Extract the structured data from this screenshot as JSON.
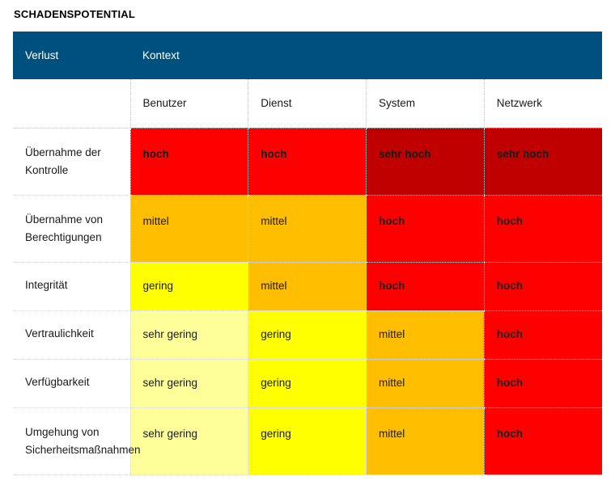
{
  "title": "SCHADENSPOTENTIAL",
  "header": {
    "col0": "Verlust",
    "context": "Kontext"
  },
  "contexts": [
    "Benutzer",
    "Dienst",
    "System",
    "Netzwerk"
  ],
  "levels": {
    "sehr gering": "#ffff99",
    "gering": "#ffff00",
    "mittel": "#ffbf00",
    "hoch": "#ff0000",
    "sehr hoch": "#c00000"
  },
  "header_color": "#00507f",
  "rows": [
    {
      "label": "Übernahme der Kontrolle",
      "values": [
        "hoch",
        "hoch",
        "sehr hoch",
        "sehr hoch"
      ]
    },
    {
      "label": "Übernahme von Berechtigungen",
      "values": [
        "mittel",
        "mittel",
        "hoch",
        "hoch"
      ]
    },
    {
      "label": "Integrität",
      "values": [
        "gering",
        "mittel",
        "hoch",
        "hoch"
      ]
    },
    {
      "label": "Vertraulichkeit",
      "values": [
        "sehr gering",
        "gering",
        "mittel",
        "hoch"
      ]
    },
    {
      "label": "Verfügbarkeit",
      "values": [
        "sehr gering",
        "gering",
        "mittel",
        "hoch"
      ]
    },
    {
      "label": "Umgehung von Sicherheitsmaßnahmen",
      "values": [
        "sehr gering",
        "gering",
        "mittel",
        "hoch"
      ]
    }
  ]
}
